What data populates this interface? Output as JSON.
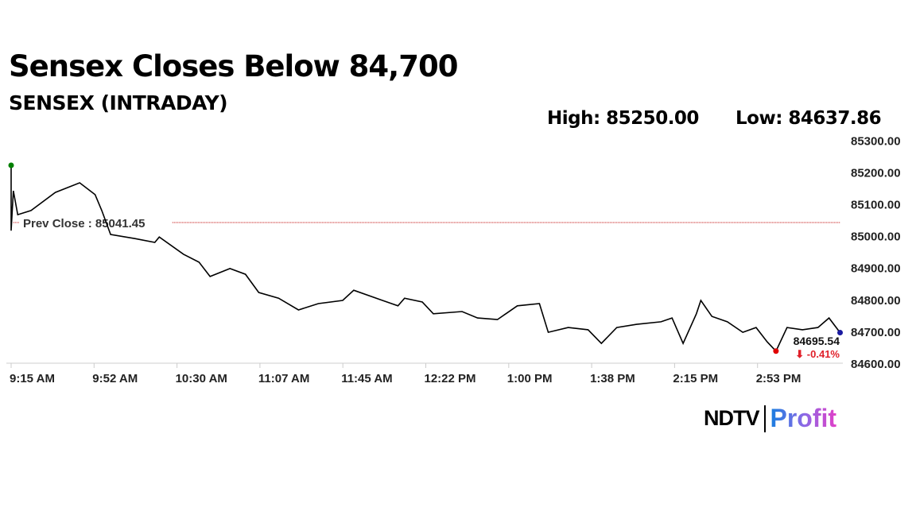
{
  "headline": "Sensex Closes Below 84,700",
  "subtitle": "SENSEX (INTRADAY)",
  "high_label": "High: 85250.00",
  "low_label": "Low: 84637.86",
  "logo": {
    "ndtv": "NDTV",
    "profit": "Profit"
  },
  "chart_data": {
    "type": "line",
    "title": "SENSEX (INTRADAY)",
    "ylim": [
      84600,
      85300
    ],
    "y_ticks": [
      "84600.00",
      "84700.00",
      "84800.00",
      "84900.00",
      "85000.00",
      "85100.00",
      "85200.00",
      "85300.00"
    ],
    "x_ticks": [
      "9:15 AM",
      "9:52 AM",
      "10:30 AM",
      "11:07 AM",
      "11:45 AM",
      "12:22 PM",
      "1:00 PM",
      "1:38 PM",
      "2:15 PM",
      "2:53 PM"
    ],
    "prev_close": {
      "label": "Prev Close : 85041.45",
      "value": 85041.45,
      "color": "#c00000"
    },
    "last": {
      "value_label": "84695.54",
      "change_label": "⬇ -0.41%",
      "change_color": "#e0202a"
    },
    "series": [
      {
        "x_minutes_from_open": [
          0,
          0,
          1,
          3,
          9,
          20,
          31,
          38,
          41,
          45,
          56,
          65,
          67,
          78,
          85,
          90,
          99,
          106,
          112,
          121,
          130,
          139,
          150,
          155,
          168,
          175,
          178,
          186,
          191,
          204,
          211,
          220,
          229,
          239,
          243,
          252,
          261,
          267,
          274,
          283,
          294,
          299,
          304,
          310,
          312,
          317,
          324,
          331,
          337,
          342,
          346,
          351,
          358,
          365,
          370,
          375
        ],
        "values": [
          85221,
          85016,
          85141,
          85066,
          85079,
          85136,
          85166,
          85129,
          85079,
          85004,
          84991,
          84979,
          84996,
          84942,
          84917,
          84872,
          84897,
          84879,
          84822,
          84804,
          84767,
          84787,
          84797,
          84829,
          84797,
          84780,
          84804,
          84792,
          84755,
          84762,
          84742,
          84737,
          84780,
          84787,
          84697,
          84712,
          84705,
          84662,
          84712,
          84722,
          84730,
          84742,
          84662,
          84755,
          84797,
          84747,
          84730,
          84697,
          84712,
          84667,
          84638,
          84712,
          84705,
          84712,
          84742,
          84696
        ]
      }
    ],
    "markers": {
      "open_color": "#008000",
      "low_color": "#e00000",
      "last_color": "#1a1aa0"
    }
  }
}
